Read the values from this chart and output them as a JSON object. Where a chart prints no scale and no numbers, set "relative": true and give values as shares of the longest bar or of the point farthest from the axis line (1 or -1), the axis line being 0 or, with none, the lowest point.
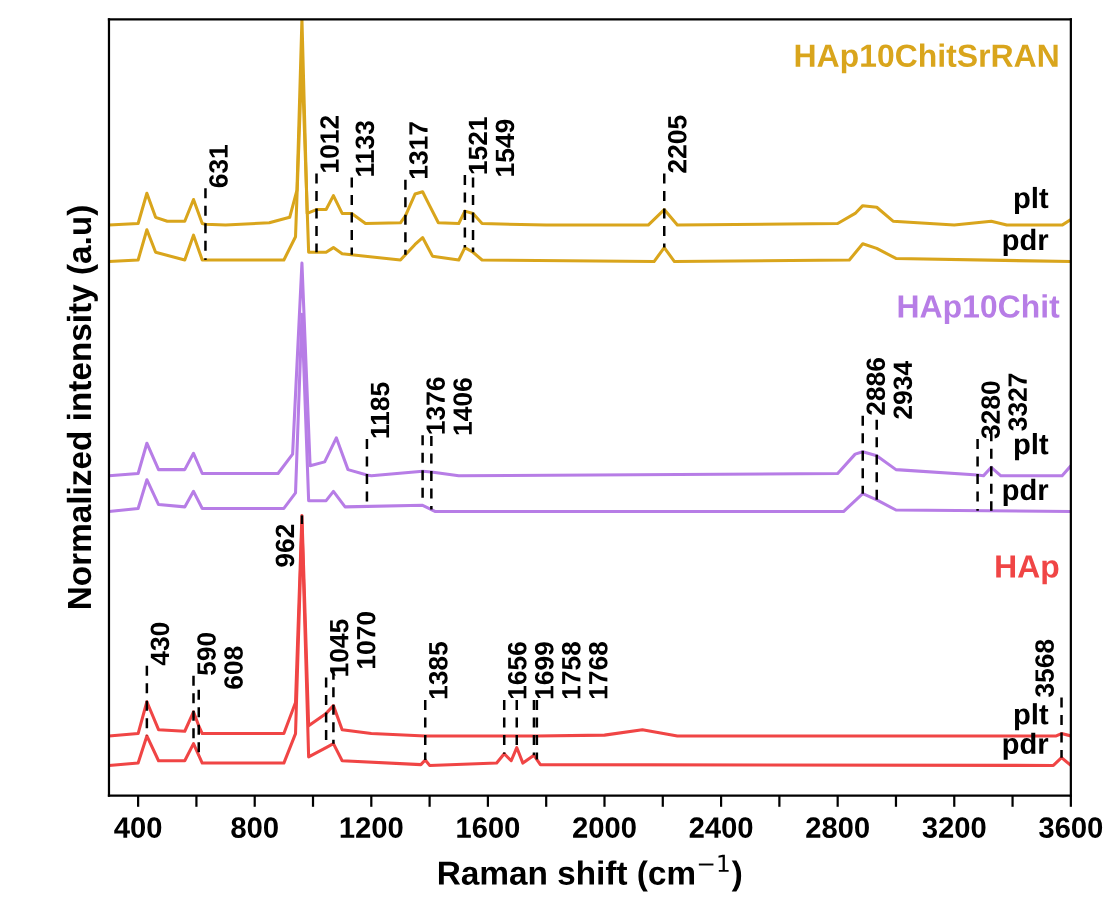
{
  "chart_data": {
    "type": "line",
    "relative": true,
    "xlabel": "Raman shift (cm$^{−1}$)",
    "ylabel": "Normalized intensity (a.u)",
    "tick_labels": "x",
    "grid": false,
    "line_style": "solid",
    "marker": "none",
    "xlim": [
      300,
      3600
    ],
    "xticks": [
      400,
      {
        "value": 600,
        "label": null
      },
      800,
      {
        "value": 1000,
        "label": null
      },
      1200,
      {
        "value": 1400,
        "label": null
      },
      1600,
      {
        "value": 1800,
        "label": null
      },
      2000,
      {
        "value": 2200,
        "label": null
      },
      2400,
      {
        "value": 2600,
        "label": null
      },
      2800,
      {
        "value": 3000,
        "label": null
      },
      3200,
      {
        "value": 3400,
        "label": null
      },
      3600
    ],
    "series": [
      {
        "name": "plt",
        "color": "#d9a51c",
        "x": [
          300,
          400,
          430,
          460,
          500,
          560,
          590,
          620,
          631,
          700,
          850,
          920,
          945,
          962,
          980,
          1012,
          1045,
          1070,
          1100,
          1133,
          1180,
          1300,
          1317,
          1350,
          1376,
          1400,
          1430,
          1500,
          1521,
          1549,
          1580,
          1800,
          2150,
          2205,
          2250,
          2800,
          2860,
          2886,
          2934,
          2990,
          3200,
          3327,
          3380,
          3570,
          3600
        ],
        "values": [
          0.735,
          0.737,
          0.776,
          0.745,
          0.74,
          0.74,
          0.768,
          0.737,
          0.736,
          0.735,
          0.738,
          0.745,
          0.78,
          1.0,
          0.75,
          0.755,
          0.755,
          0.773,
          0.75,
          0.75,
          0.737,
          0.738,
          0.747,
          0.775,
          0.778,
          0.76,
          0.738,
          0.737,
          0.753,
          0.75,
          0.737,
          0.735,
          0.735,
          0.755,
          0.735,
          0.737,
          0.75,
          0.76,
          0.758,
          0.74,
          0.735,
          0.74,
          0.735,
          0.735,
          0.742
        ]
      },
      {
        "name": "pdr",
        "color": "#d9a51c",
        "x": [
          300,
          400,
          430,
          460,
          560,
          590,
          620,
          900,
          940,
          962,
          985,
          1045,
          1070,
          1100,
          1300,
          1350,
          1376,
          1410,
          1500,
          1521,
          1549,
          1580,
          2170,
          2205,
          2240,
          2840,
          2886,
          2934,
          3000,
          3600
        ],
        "values": [
          0.688,
          0.69,
          0.729,
          0.7,
          0.69,
          0.722,
          0.69,
          0.69,
          0.72,
          0.95,
          0.7,
          0.7,
          0.706,
          0.698,
          0.69,
          0.71,
          0.719,
          0.695,
          0.69,
          0.706,
          0.7,
          0.69,
          0.688,
          0.706,
          0.688,
          0.69,
          0.711,
          0.705,
          0.692,
          0.688
        ]
      },
      {
        "name": "plt",
        "color": "#b77de6",
        "x": [
          300,
          400,
          430,
          470,
          560,
          590,
          620,
          880,
          930,
          962,
          990,
          1040,
          1080,
          1120,
          1185,
          1200,
          1376,
          1406,
          1500,
          2800,
          2860,
          2886,
          2934,
          3000,
          3280,
          3300,
          3327,
          3360,
          3570,
          3600
        ],
        "values": [
          0.412,
          0.415,
          0.454,
          0.42,
          0.42,
          0.441,
          0.415,
          0.415,
          0.44,
          0.686,
          0.425,
          0.43,
          0.461,
          0.42,
          0.413,
          0.412,
          0.418,
          0.417,
          0.412,
          0.415,
          0.44,
          0.443,
          0.438,
          0.42,
          0.413,
          0.412,
          0.423,
          0.412,
          0.412,
          0.425
        ]
      },
      {
        "name": "pdr",
        "color": "#b77de6",
        "x": [
          300,
          400,
          430,
          470,
          560,
          590,
          620,
          900,
          940,
          962,
          985,
          1045,
          1070,
          1110,
          1376,
          1420,
          2820,
          2886,
          2934,
          3000,
          3600
        ],
        "values": [
          0.366,
          0.37,
          0.407,
          0.375,
          0.372,
          0.392,
          0.37,
          0.37,
          0.39,
          0.62,
          0.38,
          0.38,
          0.392,
          0.372,
          0.374,
          0.366,
          0.366,
          0.389,
          0.381,
          0.368,
          0.366
        ]
      },
      {
        "name": "plt",
        "color": "#f04545",
        "x": [
          300,
          400,
          430,
          470,
          560,
          590,
          608,
          620,
          900,
          940,
          962,
          985,
          1045,
          1070,
          1100,
          1200,
          1385,
          1400,
          1656,
          1699,
          1758,
          1768,
          2000,
          2130,
          2250,
          3550,
          3568,
          3600
        ],
        "values": [
          0.077,
          0.08,
          0.121,
          0.085,
          0.083,
          0.108,
          0.09,
          0.08,
          0.08,
          0.12,
          0.361,
          0.09,
          0.106,
          0.116,
          0.085,
          0.08,
          0.077,
          0.077,
          0.077,
          0.077,
          0.077,
          0.077,
          0.078,
          0.085,
          0.077,
          0.077,
          0.08,
          0.077
        ]
      },
      {
        "name": "pdr",
        "color": "#f04545",
        "x": [
          300,
          400,
          430,
          470,
          560,
          590,
          620,
          900,
          940,
          962,
          985,
          1045,
          1070,
          1100,
          1370,
          1385,
          1400,
          1630,
          1656,
          1680,
          1699,
          1720,
          1758,
          1780,
          3540,
          3568,
          3600
        ],
        "values": [
          0.039,
          0.042,
          0.077,
          0.045,
          0.045,
          0.067,
          0.042,
          0.042,
          0.08,
          0.35,
          0.05,
          0.062,
          0.067,
          0.045,
          0.04,
          0.046,
          0.039,
          0.042,
          0.054,
          0.045,
          0.062,
          0.042,
          0.052,
          0.04,
          0.039,
          0.049,
          0.039
        ]
      }
    ],
    "annotations": [
      "HAp10ChitSrRAN",
      "HAp10Chit",
      "HAp",
      {
        "text": "631",
        "x": 631,
        "y": 0.736
      },
      {
        "text": "1012",
        "x": 1012,
        "y": 0.755
      },
      {
        "text": "1133",
        "x": 1133,
        "y": 0.75
      },
      {
        "text": "1317",
        "x": 1317,
        "y": 0.747
      },
      {
        "text": "1521",
        "x": 1521,
        "y": 0.753
      },
      {
        "text": "1549",
        "x": 1549,
        "y": 0.75
      },
      {
        "text": "2205",
        "x": 2205,
        "y": 0.755
      },
      {
        "text": "1185",
        "x": 1185,
        "y": 0.413
      },
      {
        "text": "1376",
        "x": 1376,
        "y": 0.418
      },
      {
        "text": "1406",
        "x": 1406,
        "y": 0.417
      },
      {
        "text": "2886",
        "x": 2886,
        "y": 0.443
      },
      {
        "text": "2934",
        "x": 2934,
        "y": 0.438
      },
      {
        "text": "3280",
        "x": 3280,
        "y": 0.413
      },
      {
        "text": "3327",
        "x": 3327,
        "y": 0.423
      },
      {
        "text": "430",
        "x": 430,
        "y": 0.121
      },
      {
        "text": "590",
        "x": 590,
        "y": 0.108
      },
      {
        "text": "608",
        "x": 608,
        "y": 0.09
      },
      {
        "text": "962",
        "x": 962,
        "y": 0.361
      },
      {
        "text": "1045",
        "x": 1045,
        "y": 0.106
      },
      {
        "text": "1070",
        "x": 1070,
        "y": 0.116
      },
      {
        "text": "1385",
        "x": 1385,
        "y": 0.077
      },
      {
        "text": "1656",
        "x": 1656,
        "y": 0.077
      },
      {
        "text": "1699",
        "x": 1699,
        "y": 0.077
      },
      {
        "text": "1758",
        "x": 1758,
        "y": 0.077
      },
      {
        "text": "1768",
        "x": 1768,
        "y": 0.077
      },
      {
        "text": "3568",
        "x": 3568,
        "y": 0.08
      }
    ]
  }
}
